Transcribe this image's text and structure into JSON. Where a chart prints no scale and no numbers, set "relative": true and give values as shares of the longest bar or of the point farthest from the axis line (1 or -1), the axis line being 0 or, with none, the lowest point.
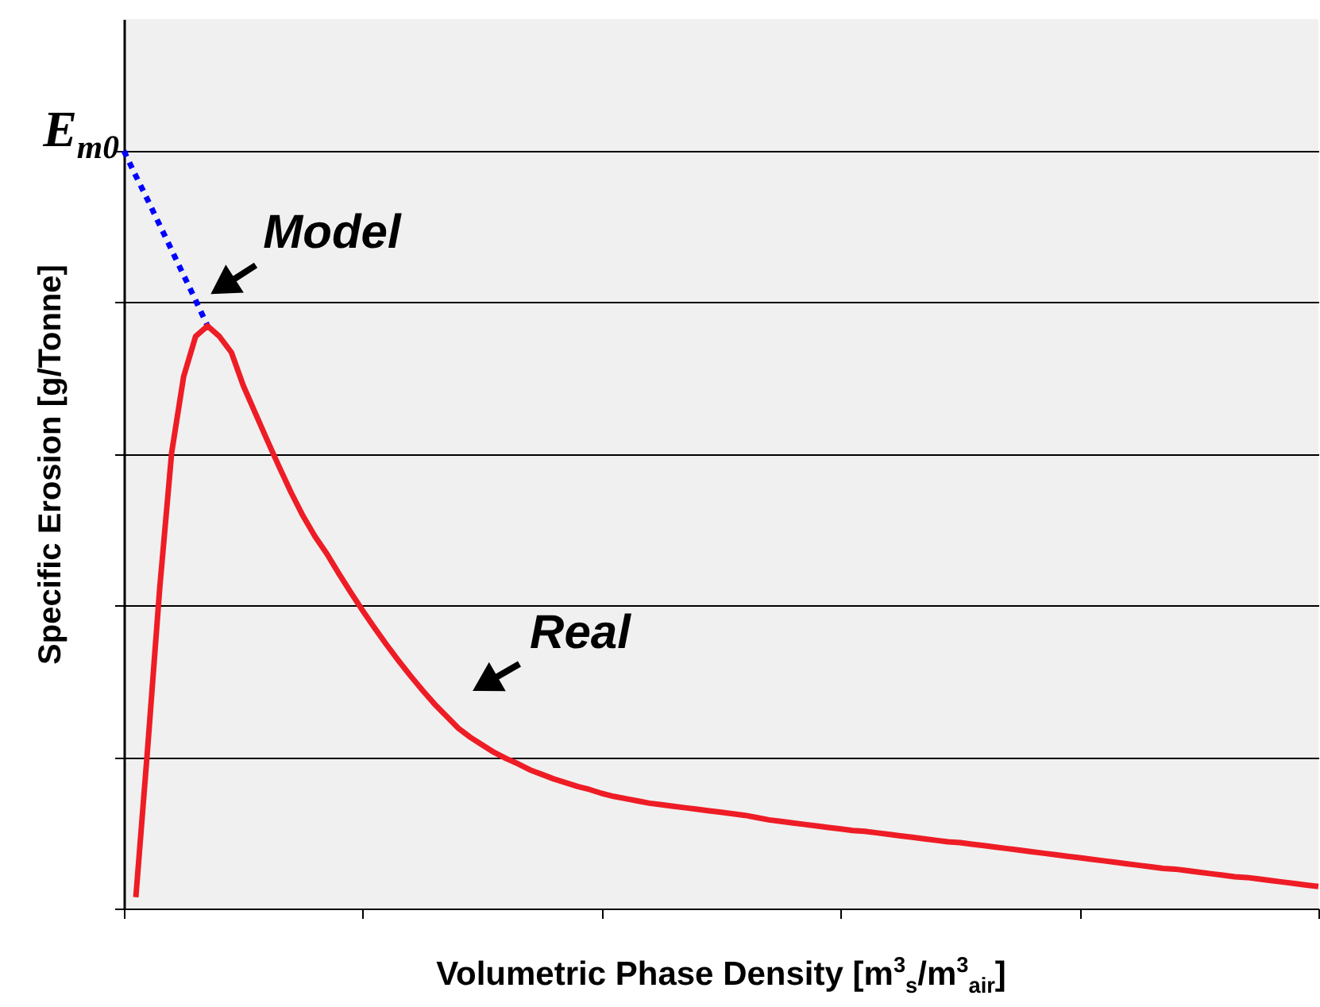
{
  "chart_data": {
    "type": "line",
    "relative": true,
    "grid": "y",
    "tick_labels": false,
    "marker": "none",
    "xlabel": "Volumetric Phase Density [m$^{3}$$_{s}$/m$^{3}$$_{air}$]",
    "ylabel": "Specific Erosion [g/Tonne]",
    "annotations": [
      "E$_{m0}$"
    ],
    "categories": [
      null,
      null,
      null,
      null,
      null,
      null,
      null,
      null,
      null,
      null,
      null,
      null,
      null,
      null,
      null,
      null,
      null,
      null,
      null,
      null,
      null,
      null,
      null,
      null,
      null,
      null,
      null,
      null,
      null,
      null,
      null,
      null,
      null,
      null,
      null,
      null,
      null,
      null,
      null,
      null,
      null,
      null,
      null,
      null,
      null,
      null,
      null,
      null,
      null,
      null,
      null,
      null,
      null,
      null,
      null,
      null,
      null,
      null,
      null,
      null,
      null,
      null,
      null,
      null,
      null,
      null,
      null,
      null,
      null,
      null,
      null,
      null,
      null,
      null,
      null,
      null,
      null,
      null,
      null,
      null,
      null,
      null,
      null,
      null,
      null,
      null,
      null,
      null,
      null,
      null,
      null,
      null,
      null,
      null,
      null,
      null,
      null,
      null,
      null,
      null,
      null
    ],
    "series": [
      {
        "name": "Model",
        "color": "#0000ff",
        "line_style": "dotted",
        "values": [
          1.0,
          0.967,
          0.935,
          0.902,
          0.869,
          0.836,
          0.803,
          0.769,
          null,
          null,
          null,
          null,
          null,
          null,
          null,
          null,
          null,
          null,
          null,
          null,
          null,
          null,
          null,
          null,
          null,
          null,
          null,
          null,
          null,
          null,
          null,
          null,
          null,
          null,
          null,
          null,
          null,
          null,
          null,
          null,
          null,
          null,
          null,
          null,
          null,
          null,
          null,
          null,
          null,
          null,
          null,
          null,
          null,
          null,
          null,
          null,
          null,
          null,
          null,
          null,
          null,
          null,
          null,
          null,
          null,
          null,
          null,
          null,
          null,
          null,
          null,
          null,
          null,
          null,
          null,
          null,
          null,
          null,
          null,
          null,
          null,
          null,
          null,
          null,
          null,
          null,
          null,
          null,
          null,
          null,
          null,
          null,
          null,
          null,
          null,
          null,
          null,
          null,
          null,
          null,
          null
        ]
      },
      {
        "name": "Real",
        "color": "#ee1c25",
        "line_style": "solid",
        "values": [
          null,
          0.015,
          0.214,
          0.423,
          0.602,
          0.702,
          0.755,
          0.769,
          0.755,
          0.734,
          0.69,
          0.654,
          0.618,
          0.583,
          0.549,
          0.518,
          0.491,
          0.468,
          0.442,
          0.417,
          0.393,
          0.37,
          0.348,
          0.327,
          0.307,
          0.288,
          0.27,
          0.254,
          0.238,
          0.226,
          0.216,
          0.206,
          0.198,
          0.191,
          0.183,
          0.177,
          0.171,
          0.166,
          0.161,
          0.157,
          0.152,
          0.148,
          0.145,
          0.142,
          0.139,
          0.137,
          0.135,
          0.133,
          0.131,
          0.129,
          0.127,
          0.125,
          0.123,
          0.12,
          0.117,
          0.115,
          0.113,
          0.111,
          0.109,
          0.107,
          0.105,
          0.103,
          0.102,
          0.1,
          0.098,
          0.096,
          0.094,
          0.092,
          0.09,
          0.088,
          0.087,
          0.085,
          0.083,
          0.081,
          0.079,
          0.077,
          0.075,
          0.073,
          0.071,
          0.069,
          0.067,
          0.065,
          0.063,
          0.061,
          0.059,
          0.057,
          0.055,
          0.053,
          0.052,
          0.05,
          0.048,
          0.046,
          0.044,
          0.042,
          0.041,
          0.039,
          0.037,
          0.035,
          0.033,
          0.031,
          0.029
        ]
      }
    ]
  }
}
